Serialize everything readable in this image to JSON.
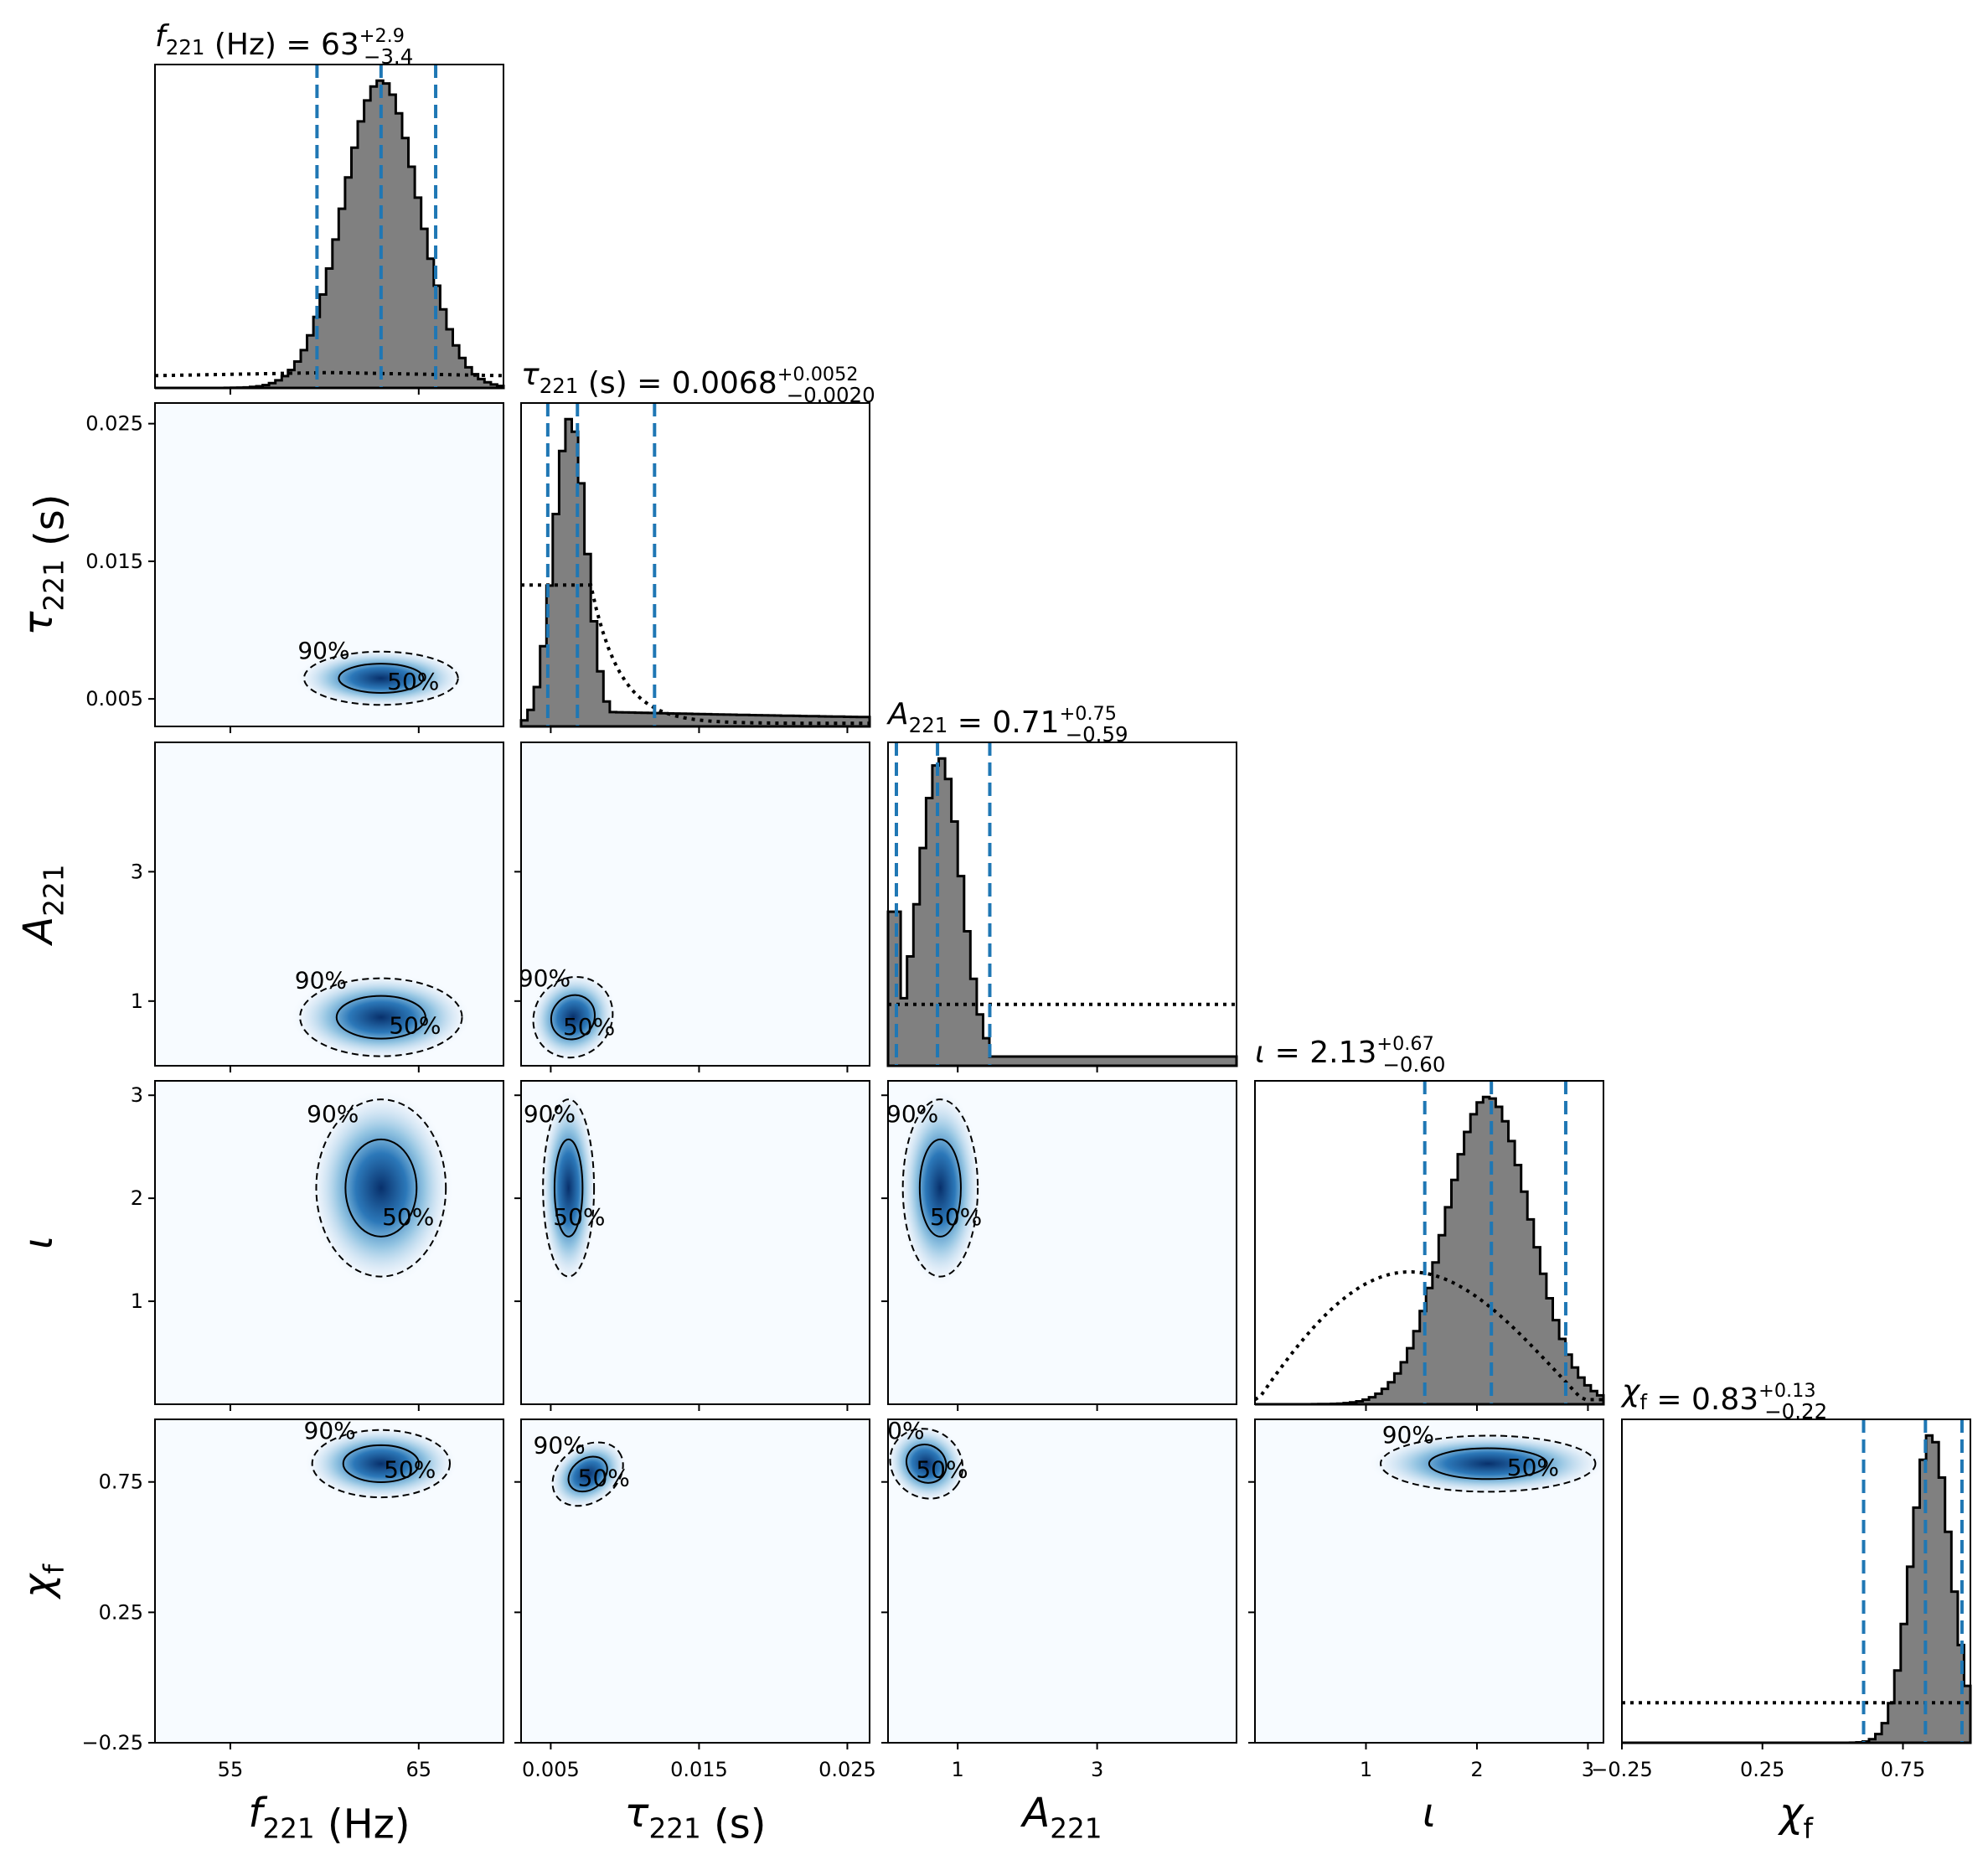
{
  "chart_data": {
    "type": "corner",
    "parameters": [
      {
        "key": "f221",
        "label": "f_221 (Hz)",
        "ticks": [
          55,
          65
        ],
        "ticklabels": [
          "55",
          "65"
        ],
        "range": [
          51,
          69.5
        ]
      },
      {
        "key": "tau221",
        "label": "τ_221 (s)",
        "ticks": [
          0.005,
          0.015,
          0.025
        ],
        "ticklabels": [
          "0.005",
          "0.015",
          "0.025"
        ],
        "range": [
          0.003,
          0.0265
        ]
      },
      {
        "key": "A221",
        "label": "A_221",
        "ticks": [
          1,
          3
        ],
        "ticklabels": [
          "1",
          "3"
        ],
        "range": [
          0,
          5
        ]
      },
      {
        "key": "iota",
        "label": "ι",
        "ticks": [
          1,
          2,
          3
        ],
        "ticklabels": [
          "1",
          "2",
          "3"
        ],
        "range": [
          0,
          3.14
        ]
      },
      {
        "key": "chif",
        "label": "χ_f",
        "ticks": [
          -0.25,
          0.25,
          0.75
        ],
        "ticklabels": [
          "−0.25",
          "0.25",
          "0.75"
        ],
        "range": [
          -0.25,
          0.99
        ]
      }
    ],
    "summaries": [
      {
        "name": "f_221 (Hz)",
        "median": "63",
        "plus": "+2.9",
        "minus": "−3.4",
        "interval": [
          59.6,
          63.0,
          65.9
        ]
      },
      {
        "name": "τ_221 (s)",
        "median": "0.0068",
        "plus": "+0.0052",
        "minus": "−0.0020",
        "interval": [
          0.0048,
          0.0068,
          0.012
        ]
      },
      {
        "name": "A_221",
        "median": "0.71",
        "plus": "+0.75",
        "minus": "−0.59",
        "interval": [
          0.12,
          0.71,
          1.46
        ]
      },
      {
        "name": "ι",
        "median": "2.13",
        "plus": "+0.67",
        "minus": "−0.60",
        "interval": [
          1.53,
          2.13,
          2.8
        ]
      },
      {
        "name": "χ_f",
        "median": "0.83",
        "plus": "+0.13",
        "minus": "−0.22",
        "interval": [
          0.61,
          0.83,
          0.96
        ]
      }
    ],
    "marginals": [
      {
        "posterior": {
          "mu": 63.0,
          "sigma": 2.0
        },
        "prior_level": 0.05
      },
      {
        "posterior": {
          "mu": 0.0063,
          "sigma": 0.0011,
          "tail": 0.04
        },
        "prior_level": 0.45
      },
      {
        "posterior": {
          "mu": 0.75,
          "sigma": 0.3,
          "cut": 1.42
        },
        "prior_level": 0.2
      },
      {
        "posterior": {
          "mu": 2.1,
          "sigma": 0.38
        },
        "prior_shape": "broad",
        "prior_level": 0.5
      },
      {
        "posterior": {
          "mu": 0.85,
          "sigma": 0.07
        },
        "prior_level": 0.13
      }
    ],
    "contour_levels": [
      "50%",
      "90%"
    ],
    "pairs": [
      {
        "x": "f221",
        "y": "tau221",
        "center": [
          63,
          0.0065
        ],
        "spread": [
          1.9,
          0.0009
        ]
      },
      {
        "x": "f221",
        "y": "A221",
        "center": [
          63,
          0.75
        ],
        "spread": [
          2.0,
          0.28
        ]
      },
      {
        "x": "tau221",
        "y": "A221",
        "center": [
          0.0065,
          0.75
        ],
        "spread": [
          0.0012,
          0.3
        ]
      },
      {
        "x": "f221",
        "y": "iota",
        "center": [
          63,
          2.1
        ],
        "spread": [
          1.6,
          0.4
        ]
      },
      {
        "x": "tau221",
        "y": "iota",
        "center": [
          0.0062,
          2.1
        ],
        "spread": [
          0.0008,
          0.4
        ]
      },
      {
        "x": "A221",
        "y": "iota",
        "center": [
          0.75,
          2.1
        ],
        "spread": [
          0.25,
          0.4
        ]
      },
      {
        "x": "f221",
        "y": "chif",
        "center": [
          63,
          0.82
        ],
        "spread": [
          1.7,
          0.06
        ]
      },
      {
        "x": "tau221",
        "y": "chif",
        "center": [
          0.0075,
          0.78
        ],
        "spread": [
          0.0012,
          0.05
        ]
      },
      {
        "x": "A221",
        "y": "chif",
        "center": [
          0.55,
          0.82
        ],
        "spread": [
          0.25,
          0.06
        ]
      },
      {
        "x": "iota",
        "y": "chif",
        "center": [
          2.1,
          0.82
        ],
        "spread": [
          0.45,
          0.05
        ]
      }
    ],
    "colors": {
      "histogram_fill": "#808080",
      "quantile_lines": "#1f77b4",
      "density_high": "#08306b",
      "density_low": "#f7fbff"
    }
  }
}
